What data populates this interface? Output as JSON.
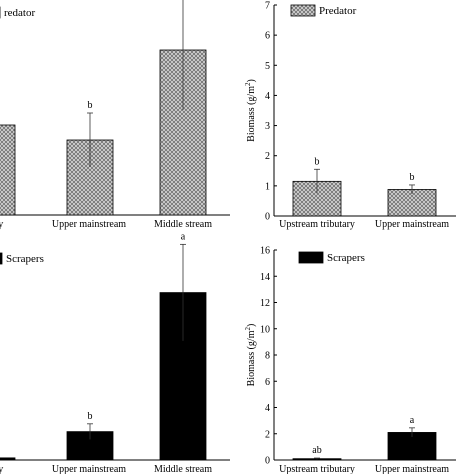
{
  "chart_data": [
    {
      "type": "bar",
      "panel": "top-left",
      "legend": "Predator",
      "categories": [
        "Upstream tributary",
        "Upper mainstream",
        "Middle stream"
      ],
      "visible_category_labels": [
        "tributary",
        "Upper mainstream",
        "Middle stream"
      ],
      "values": [
        3.0,
        2.5,
        5.5
      ],
      "errors": [
        0.0,
        0.9,
        2.0
      ],
      "significance": [
        "",
        "b",
        "a"
      ],
      "ylim": [
        0,
        8
      ],
      "fill": "hatch",
      "legend_visible_text": "Predator"
    },
    {
      "type": "bar",
      "panel": "top-right",
      "legend": "Predator",
      "categories": [
        "Upstream tributary",
        "Upper mainstream"
      ],
      "values": [
        1.15,
        0.88
      ],
      "errors": [
        0.4,
        0.15
      ],
      "significance": [
        "b",
        "b"
      ],
      "ylim": [
        0,
        7
      ],
      "yticks": [
        "0",
        "1",
        "2",
        "3",
        "4",
        "5",
        "6",
        "7"
      ],
      "ylabel": "Biomass (g/m",
      "ylabel_sup": "2",
      "ylabel_end": ")",
      "fill": "hatch"
    },
    {
      "type": "bar",
      "panel": "bottom-left",
      "legend": "Scrapers",
      "categories": [
        "Upstream tributary",
        "Upper mainstream",
        "Middle stream"
      ],
      "visible_category_labels": [
        "tributary",
        "Upper mainstream",
        "Middle stream"
      ],
      "values": [
        0.15,
        2.0,
        11.8
      ],
      "errors": [
        0.0,
        0.55,
        3.4
      ],
      "significance": [
        "",
        "b",
        "a"
      ],
      "ylim": [
        0,
        16
      ],
      "fill": "#000000"
    },
    {
      "type": "bar",
      "panel": "bottom-right",
      "legend": "Scrapers",
      "categories": [
        "Upstream tributary",
        "Upper mainstream"
      ],
      "values": [
        0.1,
        2.1
      ],
      "errors": [
        0.05,
        0.35
      ],
      "significance": [
        "ab",
        "a"
      ],
      "ylim": [
        0,
        16
      ],
      "yticks": [
        "0",
        "2",
        "4",
        "6",
        "8",
        "10",
        "12",
        "14",
        "16"
      ],
      "ylabel": "Biomass (g/m",
      "ylabel_sup": "2",
      "ylabel_end": ")",
      "fill": "#000000"
    }
  ],
  "legend_text": {
    "top_left": "redator",
    "top_right": "Predator",
    "bottom_left": "Scrapers",
    "bottom_right": "Scrapers"
  }
}
